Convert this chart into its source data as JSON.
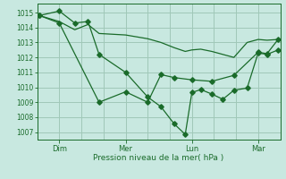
{
  "background_color": "#c8e8e0",
  "grid_color": "#a0c8b8",
  "line_color": "#1a6b2a",
  "xlabel": "Pression niveau de la mer( hPa )",
  "ylim": [
    1006.5,
    1015.6
  ],
  "yticks": [
    1007,
    1008,
    1009,
    1010,
    1011,
    1012,
    1013,
    1014,
    1015
  ],
  "xtick_labels": [
    "Dim",
    "Mer",
    "Lun",
    "Mar"
  ],
  "xtick_positions": [
    1,
    4,
    7,
    10
  ],
  "xlim": [
    0,
    11
  ],
  "line1_x": [
    0.1,
    1,
    1.7,
    2.3,
    2.8,
    4,
    5.0,
    5.6,
    6.2,
    6.7,
    7.0,
    7.4,
    7.9,
    8.4,
    8.9,
    9.5,
    10.0,
    10.4,
    10.9
  ],
  "line1_y": [
    1014.8,
    1015.1,
    1014.3,
    1014.4,
    1012.2,
    1011.0,
    1009.35,
    1008.7,
    1007.55,
    1006.85,
    1009.65,
    1009.85,
    1009.55,
    1009.2,
    1009.8,
    1009.95,
    1012.3,
    1012.2,
    1012.5
  ],
  "line2_x": [
    0.1,
    1,
    1.7,
    2.3,
    2.8,
    4,
    5.0,
    5.6,
    6.2,
    6.7,
    7.0,
    7.4,
    7.9,
    8.4,
    8.9,
    9.5,
    10.0,
    10.4,
    10.9
  ],
  "line2_y": [
    1014.8,
    1014.4,
    1013.85,
    1014.2,
    1013.6,
    1013.5,
    1013.25,
    1013.0,
    1012.65,
    1012.4,
    1012.5,
    1012.55,
    1012.4,
    1012.2,
    1012.0,
    1013.0,
    1013.2,
    1013.15,
    1013.2
  ],
  "line3_x": [
    0.1,
    1,
    2.8,
    4,
    5.0,
    5.6,
    6.2,
    7.0,
    7.9,
    8.9,
    10.0,
    10.4,
    10.9
  ],
  "line3_y": [
    1014.8,
    1014.3,
    1009.0,
    1009.7,
    1009.0,
    1010.85,
    1010.65,
    1010.5,
    1010.4,
    1010.8,
    1012.35,
    1012.25,
    1013.2
  ]
}
